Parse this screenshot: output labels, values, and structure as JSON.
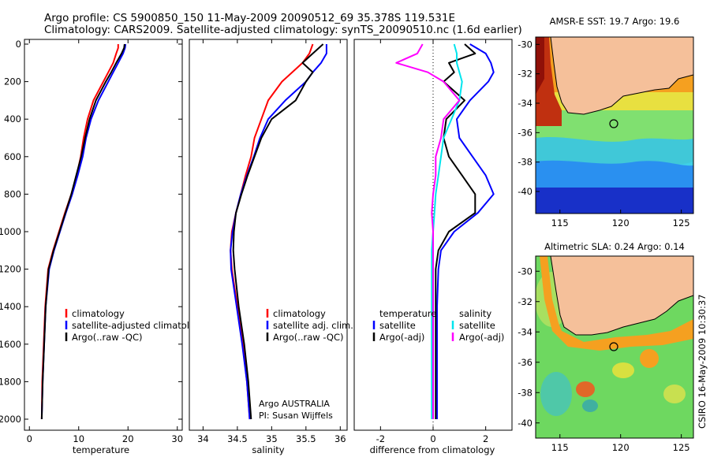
{
  "header": {
    "line1": "Argo profile: CS 5900850_150 11-May-2009 20090512_69 35.378S 119.531E",
    "line2": "Climatology: CARS2009. Satellite-adjusted climatology: synTS_20090510.nc (1.6d earlier)"
  },
  "colors": {
    "climatology": "#ff0000",
    "satellite": "#0000ff",
    "argo": "#000000",
    "argo_sal": "#ff00ff",
    "sat_sal": "#00e5ee",
    "land": "#f5c09a"
  },
  "chart_data": [
    {
      "type": "line",
      "name": "temperature-profile",
      "xlabel": "temperature",
      "ylabel": "",
      "xlim": [
        -1,
        31
      ],
      "ylim": [
        2050,
        -10
      ],
      "xticks": [
        "0",
        "10",
        "20",
        "30"
      ],
      "yticks": [
        "0",
        "200",
        "400",
        "600",
        "800",
        "1000",
        "1200",
        "1400",
        "1600",
        "1800",
        "2000"
      ],
      "depth": [
        0,
        20,
        50,
        100,
        150,
        200,
        300,
        400,
        500,
        600,
        700,
        800,
        900,
        1000,
        1100,
        1200,
        1400,
        1600,
        1800,
        2000
      ],
      "series": [
        {
          "name": "climatology",
          "color": "#ff0000",
          "values": [
            18,
            18,
            17.6,
            17,
            16,
            15,
            13,
            11.8,
            11,
            10.4,
            9.6,
            8.5,
            7.2,
            6,
            4.8,
            3.8,
            3.2,
            2.9,
            2.6,
            2.5
          ]
        },
        {
          "name": "satellite-adjusted climatology",
          "color": "#0000ff",
          "values": [
            19.5,
            19.4,
            19,
            18,
            17,
            16,
            14,
            12.5,
            11.5,
            10.8,
            9.8,
            8.7,
            7.4,
            6.2,
            5,
            4,
            3.3,
            3,
            2.7,
            2.5
          ]
        },
        {
          "name": "Argo(..raw -QC)",
          "color": "#000000",
          "values": [
            19.3,
            19.2,
            18.7,
            17.6,
            16.6,
            15.5,
            13.5,
            12.2,
            11.3,
            10.5,
            9.5,
            8.5,
            7.3,
            6.1,
            4.9,
            3.9,
            3.3,
            3,
            2.7,
            2.5
          ]
        }
      ],
      "legend": [
        "climatology",
        "satellite-adjusted climatology",
        "Argo(..raw -QC)"
      ]
    },
    {
      "type": "line",
      "name": "salinity-profile",
      "xlabel": "salinity",
      "xlim": [
        33.8,
        36.1
      ],
      "xticks": [
        "34",
        "34.5",
        "35",
        "35.5",
        "36"
      ],
      "depth": [
        0,
        50,
        100,
        150,
        200,
        300,
        400,
        500,
        600,
        700,
        800,
        900,
        1000,
        1100,
        1200,
        1400,
        1600,
        1800,
        2000
      ],
      "series": [
        {
          "name": "climatology",
          "color": "#ff0000",
          "values": [
            35.6,
            35.55,
            35.45,
            35.3,
            35.15,
            34.95,
            34.85,
            34.75,
            34.7,
            34.62,
            34.55,
            34.48,
            34.42,
            34.4,
            34.42,
            34.5,
            34.58,
            34.64,
            34.68
          ]
        },
        {
          "name": "satellite adj. clim.",
          "color": "#0000ff",
          "values": [
            35.8,
            35.8,
            35.72,
            35.6,
            35.5,
            35.2,
            34.95,
            34.83,
            34.74,
            34.64,
            34.55,
            34.48,
            34.43,
            34.4,
            34.41,
            34.49,
            34.57,
            34.64,
            34.68
          ]
        },
        {
          "name": "Argo(..raw -QC)",
          "color": "#000000",
          "values": [
            35.75,
            35.6,
            35.45,
            35.6,
            35.5,
            35.35,
            35.0,
            34.85,
            34.75,
            34.65,
            34.56,
            34.48,
            34.45,
            34.44,
            34.46,
            34.52,
            34.6,
            34.66,
            34.7
          ]
        }
      ],
      "legend": [
        "climatology",
        "satellite adj. clim.",
        "Argo(..raw -QC)"
      ],
      "annotation": [
        "Argo AUSTRALIA",
        "PI: Susan Wijffels"
      ]
    },
    {
      "type": "line",
      "name": "difference-profile",
      "xlabel": "difference from climatology",
      "xlim": [
        -3,
        3
      ],
      "xticks": [
        "-2",
        "0",
        "2"
      ],
      "depth": [
        0,
        50,
        100,
        150,
        200,
        300,
        400,
        500,
        600,
        700,
        800,
        900,
        1000,
        1100,
        1200,
        1400,
        1600,
        1800,
        2000
      ],
      "series": [
        {
          "name": "temperature satellite",
          "color": "#0000ff",
          "values": [
            1.4,
            2.0,
            2.2,
            2.3,
            2.1,
            1.4,
            0.9,
            1.0,
            1.5,
            2.0,
            2.3,
            1.7,
            0.8,
            0.3,
            0.2,
            0.15,
            0.15,
            0.15,
            0.15
          ]
        },
        {
          "name": "temperature Argo(-adj)",
          "color": "#000000",
          "values": [
            1.2,
            1.6,
            0.6,
            0.8,
            0.4,
            1.2,
            0.5,
            0.4,
            0.6,
            1.1,
            1.6,
            1.6,
            0.6,
            0.2,
            0.1,
            0.1,
            0.1,
            0.1,
            0.1
          ]
        },
        {
          "name": "salinity satellite",
          "color": "#00e5ee",
          "values": [
            0.8,
            0.9,
            0.9,
            1.0,
            1.1,
            1.0,
            0.7,
            0.4,
            0.3,
            0.2,
            0.1,
            0.05,
            0,
            -0.05,
            -0.05,
            -0.05,
            -0.05,
            -0.05,
            -0.05
          ]
        },
        {
          "name": "salinity Argo(-adj)",
          "color": "#ff00ff",
          "values": [
            -0.4,
            -0.6,
            -1.4,
            -0.2,
            0.4,
            1.0,
            0.4,
            0.3,
            0.1,
            0.1,
            0,
            -0.05,
            0,
            0,
            0,
            0,
            0,
            0,
            0
          ]
        }
      ],
      "legend_headers": [
        "temperature",
        "salinity"
      ],
      "legend": [
        "satellite",
        "Argo(-adj)",
        "satellite",
        "Argo(-adj)"
      ]
    },
    {
      "type": "heatmap",
      "name": "sst-map",
      "title": "AMSR-E SST: 19.7 Argo: 19.6",
      "xticks": [
        "115",
        "120",
        "125"
      ],
      "yticks": [
        "-30",
        "-32",
        "-34",
        "-36",
        "-38",
        "-40"
      ],
      "xlim": [
        113,
        126
      ],
      "ylim": [
        -41.5,
        -29.5
      ],
      "argo_position": {
        "lon": 119.531,
        "lat": -35.378
      }
    },
    {
      "type": "heatmap",
      "name": "sla-map",
      "title": "Altimetric SLA: 0.24 Argo: 0.14",
      "xticks": [
        "115",
        "120",
        "125"
      ],
      "yticks": [
        "-30",
        "-32",
        "-34",
        "-36",
        "-38",
        "-40"
      ],
      "xlim": [
        113,
        126
      ],
      "ylim": [
        -41,
        -29
      ],
      "argo_position": {
        "lon": 119.531,
        "lat": -35.378
      }
    }
  ],
  "footer_vertical": "CSIRO 16-May-2009 10:30:37"
}
